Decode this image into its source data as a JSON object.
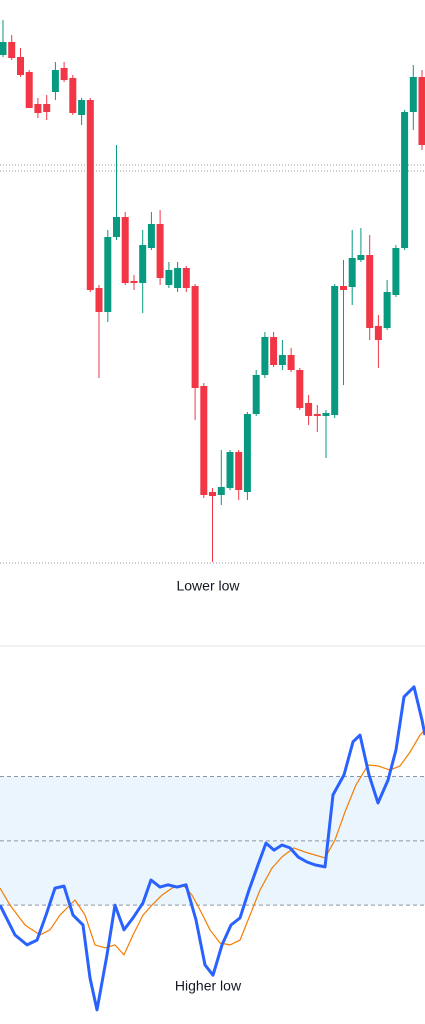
{
  "chart_data": [
    {
      "type": "candlestick",
      "xlim": [
        0,
        425
      ],
      "ylim": [
        0,
        645
      ],
      "x": [
        3,
        11.7,
        20.5,
        29.2,
        37.9,
        46.7,
        55.4,
        64.1,
        72.8,
        81.6,
        90.3,
        99,
        107.8,
        116.5,
        125.2,
        134,
        142.7,
        151.4,
        160.1,
        168.9,
        177.6,
        186.3,
        195.1,
        203.8,
        212.5,
        221.3,
        230,
        238.7,
        247.4,
        256.2,
        264.9,
        273.6,
        282.4,
        291.1,
        299.8,
        308.6,
        317.3,
        326,
        334.7,
        343.5,
        352.2,
        360.9,
        369.7,
        378.4,
        387.1,
        395.9,
        404.6,
        413.3,
        422
      ],
      "open": [
        590,
        603,
        588,
        573,
        541,
        541,
        553,
        577,
        567,
        530,
        545,
        357,
        333,
        408,
        428,
        364,
        362,
        397,
        421,
        360,
        357,
        377,
        359,
        259,
        153,
        150,
        157,
        193,
        153,
        231,
        270,
        308,
        280,
        290,
        275,
        242,
        231,
        229,
        230,
        359,
        358,
        385,
        390,
        319,
        317,
        350,
        397,
        533,
        568
      ],
      "high": [
        625,
        610,
        597,
        575,
        547,
        550,
        583,
        583,
        570,
        547,
        547,
        360,
        415,
        500,
        433,
        370,
        415,
        433,
        435,
        383,
        383,
        379,
        361,
        262,
        157,
        195,
        195,
        195,
        233,
        275,
        313,
        313,
        305,
        297,
        277,
        250,
        240,
        235,
        361,
        385,
        415,
        417,
        410,
        330,
        365,
        400,
        535,
        580,
        575
      ],
      "low": [
        588,
        585,
        568,
        537,
        527,
        525,
        545,
        563,
        530,
        520,
        353,
        267,
        323,
        405,
        360,
        355,
        332,
        395,
        360,
        357,
        353,
        353,
        225,
        147,
        83,
        140,
        155,
        145,
        145,
        229,
        267,
        278,
        275,
        273,
        235,
        220,
        213,
        187,
        227,
        260,
        340,
        383,
        305,
        277,
        315,
        348,
        395,
        515,
        495
      ],
      "close": [
        603,
        587,
        570,
        537,
        532,
        533,
        575,
        565,
        532,
        545,
        355,
        333,
        408,
        428,
        362,
        362,
        400,
        421,
        367,
        375,
        377,
        357,
        257,
        150,
        149,
        158,
        193,
        155,
        231,
        270,
        308,
        280,
        290,
        275,
        237,
        229,
        229,
        232,
        359,
        355,
        387,
        390,
        317,
        305,
        353,
        397,
        533,
        568,
        500
      ],
      "up_color": "#089981",
      "down_color": "#f23645",
      "hlines": [
        480,
        474,
        82
      ],
      "hline_color": "#9598a1",
      "annotation": "Lower low"
    },
    {
      "type": "line",
      "xlim": [
        0,
        425
      ],
      "ylim": [
        -7,
        110
      ],
      "series": [
        {
          "color": "#2962ff",
          "x": [
            0,
            15,
            27,
            37,
            46,
            55,
            64,
            73,
            83,
            90,
            97,
            107,
            115,
            124,
            133,
            143,
            151,
            160,
            168,
            177,
            186,
            196,
            205,
            213,
            222,
            231,
            240,
            249,
            258,
            266,
            274,
            282,
            290,
            298,
            307,
            315,
            325,
            333,
            344,
            353,
            360,
            369,
            378,
            388,
            396,
            404,
            414,
            422,
            425
          ],
          "values": [
            30.0,
            20.7,
            17.6,
            19.1,
            26.9,
            35.3,
            35.9,
            26.9,
            23.8,
            7.3,
            -2.6,
            14.5,
            30.0,
            22.3,
            26.0,
            30.7,
            37.8,
            35.6,
            36.3,
            35.6,
            36.3,
            25.4,
            11.4,
            8.2,
            17.6,
            23.8,
            26.0,
            34.7,
            42.5,
            49.3,
            47.1,
            48.7,
            47.8,
            45.0,
            43.4,
            42.5,
            41.9,
            64.3,
            70.5,
            80.8,
            82.9,
            70.5,
            61.8,
            68.9,
            78.3,
            94.8,
            97.9,
            87.6,
            82.9
          ]
        },
        {
          "color": "#f57c00",
          "x": [
            0,
            10,
            25,
            40,
            50,
            60,
            75,
            85,
            95,
            105,
            115,
            124,
            133,
            143,
            152,
            162,
            172,
            183,
            192,
            200,
            210,
            220,
            230,
            240,
            250,
            260,
            272,
            282,
            294,
            305,
            315,
            325,
            335,
            345,
            356,
            368,
            378,
            390,
            400,
            410,
            420,
            425
          ],
          "values": [
            35.3,
            30.0,
            23.8,
            20.7,
            22.3,
            26.9,
            31.6,
            26.9,
            17.6,
            16.7,
            17.6,
            14.5,
            20.7,
            26.9,
            30.0,
            33.1,
            35.3,
            36.3,
            33.1,
            28.5,
            22.3,
            18.2,
            17.6,
            19.1,
            26.9,
            34.7,
            41.5,
            45.0,
            47.8,
            46.5,
            45.6,
            44.7,
            50.3,
            59.0,
            67.4,
            73.6,
            73.3,
            72.0,
            73.3,
            77.6,
            82.9,
            84.5
          ]
        }
      ],
      "hlines": [
        70,
        50,
        30
      ],
      "hline_color": "#787b86",
      "band_color": "#e3f2fd",
      "annotation": "Higher low"
    }
  ]
}
